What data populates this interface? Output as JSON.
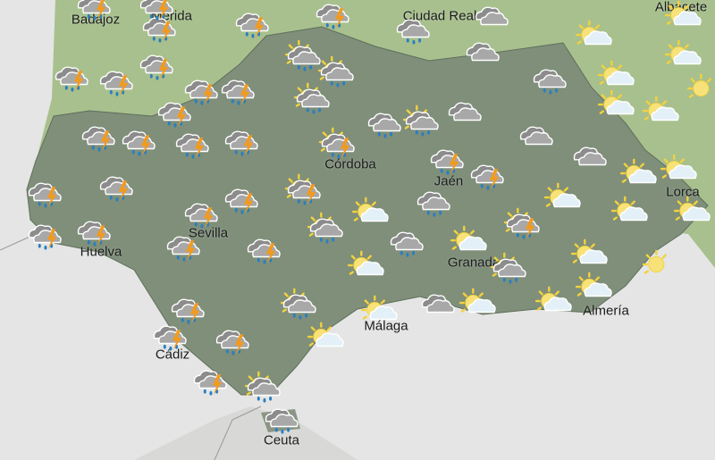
{
  "colors": {
    "sea": "#e4e5e4",
    "land_outside": "#a8c08e",
    "region": "#7f8f7a",
    "bolt": "#f39a1c",
    "rain": "#2a7fc0",
    "sun": "#f4d23c"
  },
  "cities": [
    {
      "name": "Badajoz"
    },
    {
      "name": "Mérida"
    },
    {
      "name": "Ciudad Real"
    },
    {
      "name": "Albacete"
    },
    {
      "name": "Córdoba"
    },
    {
      "name": "Jaén"
    },
    {
      "name": "Sevilla"
    },
    {
      "name": "Huelva"
    },
    {
      "name": "Granada"
    },
    {
      "name": "Lorca"
    },
    {
      "name": "Almería"
    },
    {
      "name": "Málaga"
    },
    {
      "name": "Cádiz"
    },
    {
      "name": "Ceuta"
    }
  ],
  "forecast_icons": [
    "storm",
    "storm",
    "storm",
    "storm",
    "storm",
    "rain",
    "cloudy",
    "sun-cloud",
    "sun-cloud",
    "storm",
    "storm",
    "storm",
    "storm",
    "storm",
    "sun-rain",
    "sun-rain",
    "sun-rain",
    "cloudy",
    "rain",
    "sun-cloud",
    "sun-cloud",
    "sun",
    "storm",
    "rain",
    "sun-rain",
    "cloudy",
    "sun-cloud",
    "sun-cloud",
    "storm",
    "storm",
    "storm",
    "storm",
    "sun-storm",
    "cloudy",
    "cloudy",
    "storm",
    "storm",
    "sun-cloud",
    "sun-cloud",
    "storm",
    "storm",
    "sun-storm",
    "storm",
    "storm",
    "sun-cloud",
    "rain",
    "sun-cloud",
    "sun-cloud",
    "sun-cloud",
    "sun-storm",
    "storm",
    "storm",
    "sun-rain",
    "storm",
    "storm",
    "rain",
    "sun-cloud",
    "sun-cloud",
    "sun-rain",
    "sun-cloud",
    "sun",
    "storm",
    "sun-rain",
    "sun-cloud",
    "cloudy",
    "sun-cloud",
    "sun-cloud",
    "sun-cloud",
    "storm",
    "storm",
    "sun-cloud",
    "storm",
    "sun-rain",
    "rain"
  ]
}
